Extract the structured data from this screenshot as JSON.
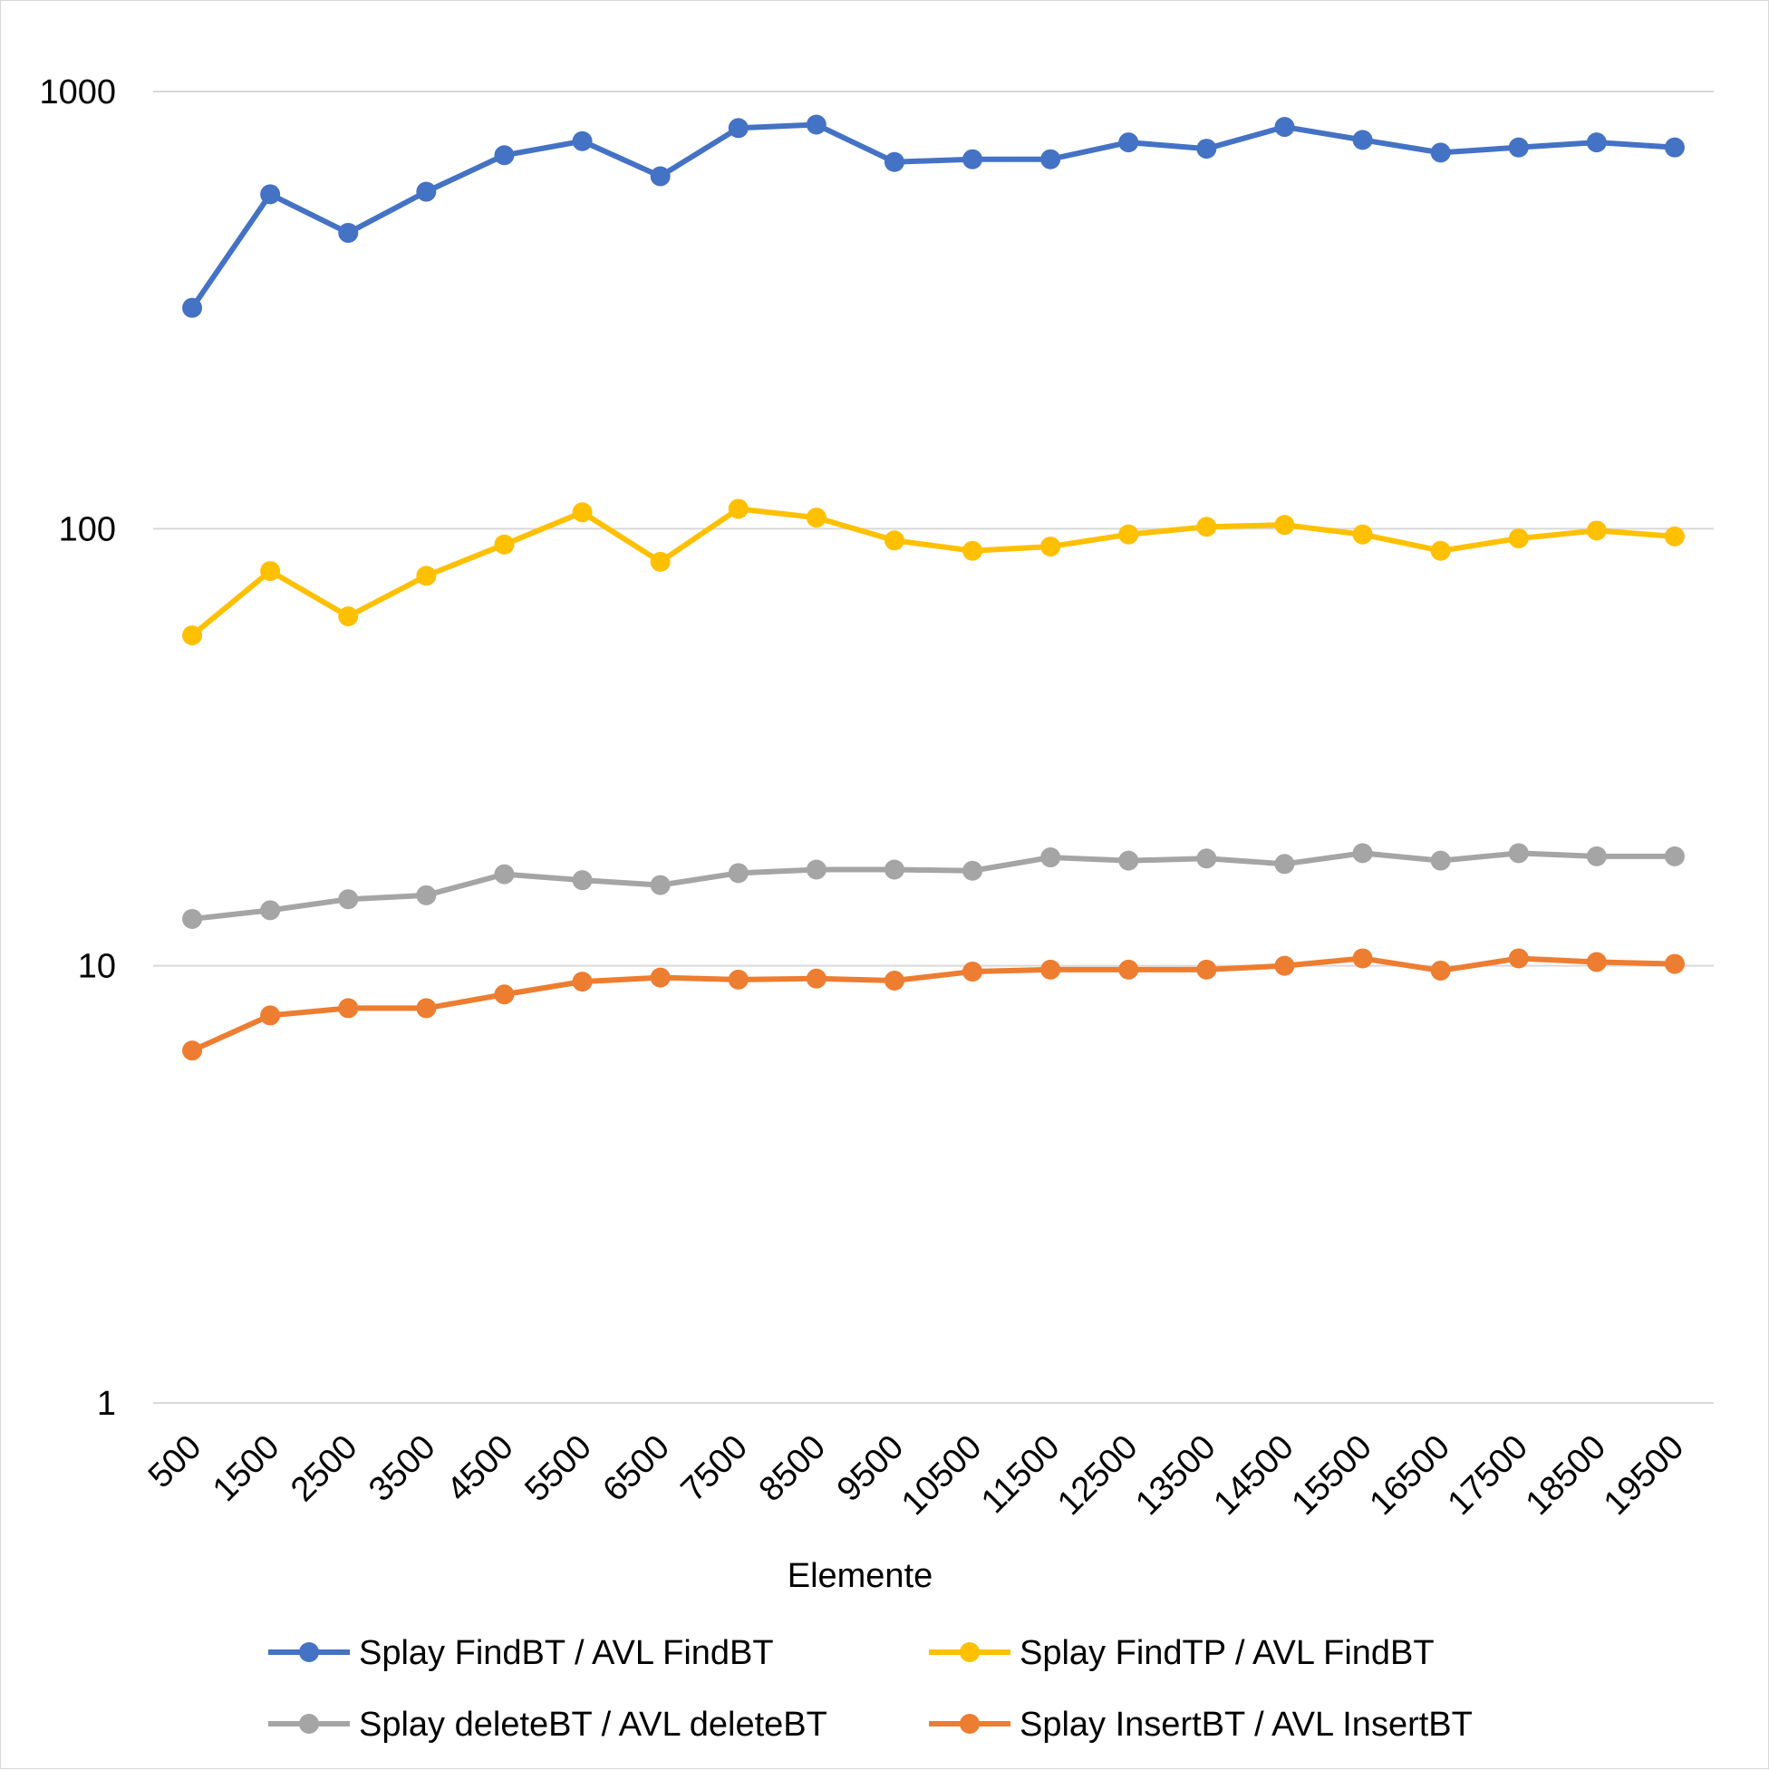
{
  "chart_data": {
    "type": "line",
    "title": "",
    "xlabel": "Elemente",
    "ylabel": "",
    "y_scale": "log",
    "ylim": [
      1,
      1000
    ],
    "y_ticks": [
      1,
      10,
      100,
      1000
    ],
    "y_tick_labels": [
      "1",
      "10",
      "100",
      "1000"
    ],
    "grid": "horizontal",
    "legend_position": "bottom",
    "categories": [
      "500",
      "1500",
      "2500",
      "3500",
      "4500",
      "5500",
      "6500",
      "7500",
      "8500",
      "9500",
      "10500",
      "11500",
      "12500",
      "13500",
      "14500",
      "15500",
      "16500",
      "17500",
      "18500",
      "19500"
    ],
    "series": [
      {
        "name": "Splay FindBT / AVL FindBT",
        "color": "#4472c4",
        "values": [
          320,
          582,
          475,
          590,
          715,
          770,
          640,
          825,
          840,
          690,
          700,
          700,
          765,
          740,
          830,
          775,
          725,
          745,
          765,
          745
        ]
      },
      {
        "name": "Splay FindTP / AVL FindBT",
        "color": "#ffc000",
        "values": [
          57,
          80,
          63,
          78,
          92,
          109,
          84,
          111,
          106,
          94,
          89,
          91,
          97,
          101,
          102,
          97,
          89,
          95,
          99,
          96
        ]
      },
      {
        "name": "Splay deleteBT / AVL deleteBT",
        "color": "#a5a5a5",
        "values": [
          12.8,
          13.4,
          14.2,
          14.5,
          16.2,
          15.7,
          15.3,
          16.3,
          16.6,
          16.6,
          16.5,
          17.7,
          17.4,
          17.6,
          17.1,
          18.1,
          17.4,
          18.1,
          17.8,
          17.8
        ]
      },
      {
        "name": "Splay InsertBT / AVL InsertBT",
        "color": "#ed7d31",
        "values": [
          6.4,
          7.7,
          8.0,
          8.0,
          8.6,
          9.2,
          9.4,
          9.3,
          9.35,
          9.25,
          9.7,
          9.8,
          9.8,
          9.8,
          10.0,
          10.4,
          9.75,
          10.4,
          10.2,
          10.1
        ]
      }
    ]
  }
}
